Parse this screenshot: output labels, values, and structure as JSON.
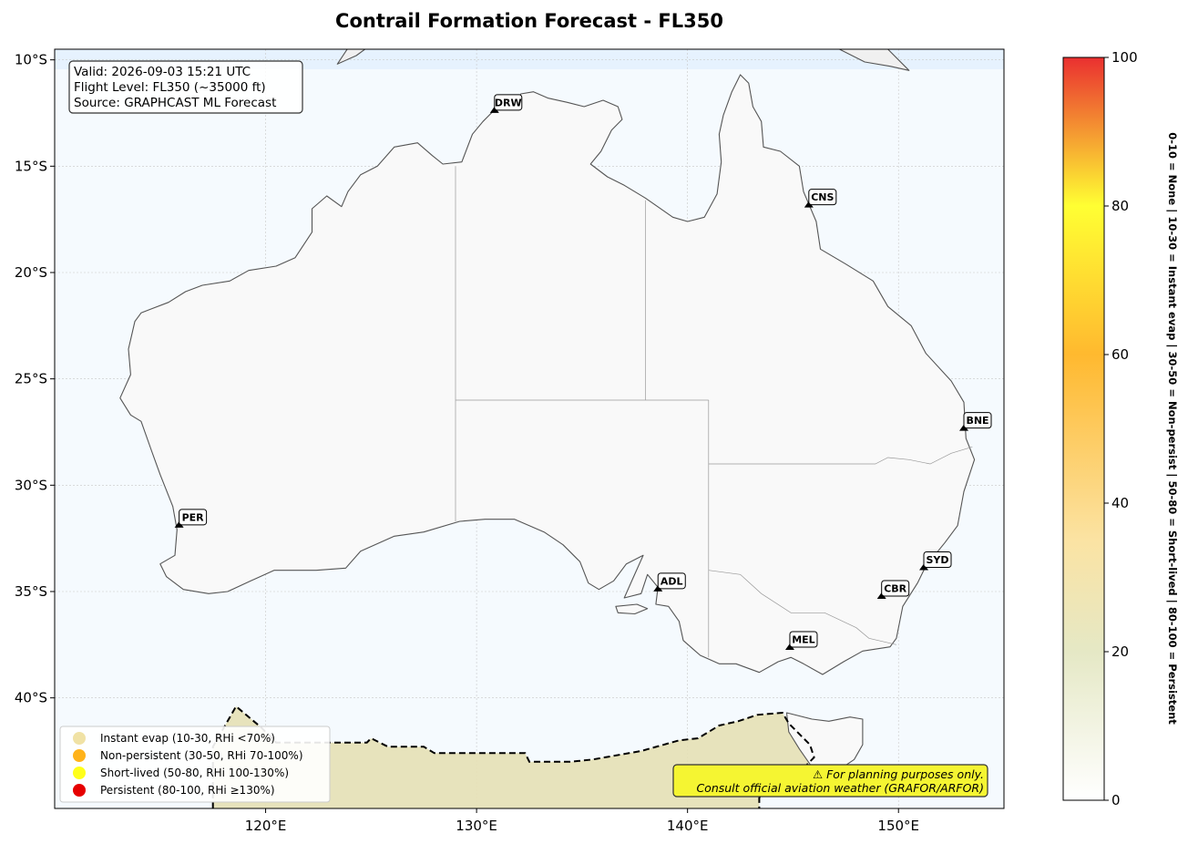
{
  "title": "Contrail Formation Forecast - FL350",
  "info_box": {
    "valid": "Valid: 2026-09-03 15:21 UTC",
    "flight_level": "Flight Level: FL350 (~35000 ft)",
    "source": "Source: GRAPHCAST ML Forecast"
  },
  "map": {
    "lon_range": [
      110,
      155
    ],
    "lat_range": [
      -45.2,
      -9.5
    ],
    "lon_ticks": [
      {
        "v": 120,
        "label": "120°E"
      },
      {
        "v": 130,
        "label": "130°E"
      },
      {
        "v": 140,
        "label": "140°E"
      },
      {
        "v": 150,
        "label": "150°E"
      }
    ],
    "lat_ticks": [
      {
        "v": -10,
        "label": "10°S"
      },
      {
        "v": -15,
        "label": "15°S"
      },
      {
        "v": -20,
        "label": "20°S"
      },
      {
        "v": -25,
        "label": "25°S"
      },
      {
        "v": -30,
        "label": "30°S"
      },
      {
        "v": -35,
        "label": "35°S"
      },
      {
        "v": -40,
        "label": "40°S"
      }
    ],
    "grid": true,
    "ocean_color": "#f5fafe",
    "land_color": "#f9f9f9"
  },
  "airports": [
    {
      "code": "DRW",
      "lon": 130.85,
      "lat": -12.45
    },
    {
      "code": "CNS",
      "lon": 145.75,
      "lat": -16.9
    },
    {
      "code": "BNE",
      "lon": 153.1,
      "lat": -27.4
    },
    {
      "code": "PER",
      "lon": 115.9,
      "lat": -31.95
    },
    {
      "code": "ADL",
      "lon": 138.6,
      "lat": -34.95
    },
    {
      "code": "SYD",
      "lon": 151.2,
      "lat": -33.95
    },
    {
      "code": "CBR",
      "lon": 149.2,
      "lat": -35.3
    },
    {
      "code": "MEL",
      "lon": 144.85,
      "lat": -37.7
    }
  ],
  "legend": {
    "position": "bottom-left",
    "items": [
      {
        "label": "Instant evap (10-30, RHi <70%)",
        "color": "#f0e2a5"
      },
      {
        "label": "Non-persistent (30-50, RHi 70-100%)",
        "color": "#ffb31a"
      },
      {
        "label": "Short-lived (50-80, RHi 100-130%)",
        "color": "#ffff1a"
      },
      {
        "label": "Persistent (80-100, RHi ≥130%)",
        "color": "#e60000"
      }
    ]
  },
  "note": {
    "line1": "⚠ For planning purposes only.",
    "line2": "Consult official aviation weather (GRAFOR/ARFOR)",
    "color": "#f5f532"
  },
  "colorbar": {
    "min": 0,
    "max": 100,
    "ticks": [
      {
        "v": 0,
        "label": "0"
      },
      {
        "v": 20,
        "label": "20"
      },
      {
        "v": 40,
        "label": "40"
      },
      {
        "v": 60,
        "label": "60"
      },
      {
        "v": 80,
        "label": "80"
      },
      {
        "v": 100,
        "label": "100"
      }
    ],
    "label": "0-10 = None  |  10-30 = Instant evap  |  30-50 = Non-persist  |  50-80 = Short-lived  |  80-100 = Persistent",
    "stops": [
      {
        "v": 0,
        "color": "#ffffff"
      },
      {
        "v": 20,
        "color": "#e5e8c5"
      },
      {
        "v": 35,
        "color": "#fbe3a3"
      },
      {
        "v": 60,
        "color": "#ffb92f"
      },
      {
        "v": 80,
        "color": "#ffff33"
      },
      {
        "v": 100,
        "color": "#ea3030"
      }
    ]
  },
  "contrail_region": {
    "level": 20,
    "fill_color": "#e6e0b5",
    "outline": [
      [
        117.5,
        -45.2
      ],
      [
        117.5,
        -42.3
      ],
      [
        118.6,
        -40.4
      ],
      [
        119.8,
        -41.4
      ],
      [
        120.5,
        -42.1
      ],
      [
        124.8,
        -42.1
      ],
      [
        125.0,
        -41.9
      ],
      [
        125.8,
        -42.3
      ],
      [
        127.5,
        -42.3
      ],
      [
        128.0,
        -42.6
      ],
      [
        132.3,
        -42.6
      ],
      [
        132.5,
        -43.0
      ],
      [
        134.5,
        -43.0
      ],
      [
        135.5,
        -42.9
      ],
      [
        137.8,
        -42.5
      ],
      [
        139.6,
        -42.0
      ],
      [
        140.5,
        -41.9
      ],
      [
        141.5,
        -41.3
      ],
      [
        142.4,
        -41.1
      ],
      [
        143.3,
        -40.8
      ],
      [
        144.5,
        -40.7
      ],
      [
        144.8,
        -41.2
      ],
      [
        145.8,
        -42.2
      ],
      [
        146.0,
        -42.8
      ],
      [
        145.0,
        -43.8
      ],
      [
        143.8,
        -44.2
      ],
      [
        143.4,
        -44.7
      ],
      [
        143.4,
        -45.2
      ]
    ]
  },
  "land": {
    "mainland": [
      [
        114.1,
        -21.9
      ],
      [
        114.6,
        -21.7
      ],
      [
        115.4,
        -21.4
      ],
      [
        116.2,
        -20.9
      ],
      [
        117.0,
        -20.6
      ],
      [
        118.3,
        -20.4
      ],
      [
        119.2,
        -19.9
      ],
      [
        120.5,
        -19.7
      ],
      [
        121.4,
        -19.3
      ],
      [
        122.2,
        -18.1
      ],
      [
        122.2,
        -17.0
      ],
      [
        122.9,
        -16.4
      ],
      [
        123.6,
        -16.9
      ],
      [
        123.9,
        -16.2
      ],
      [
        124.5,
        -15.4
      ],
      [
        125.3,
        -15.0
      ],
      [
        126.1,
        -14.1
      ],
      [
        127.2,
        -13.9
      ],
      [
        127.9,
        -14.5
      ],
      [
        128.4,
        -14.9
      ],
      [
        129.3,
        -14.8
      ],
      [
        129.8,
        -13.5
      ],
      [
        130.3,
        -12.9
      ],
      [
        130.9,
        -12.3
      ],
      [
        131.6,
        -12.2
      ],
      [
        132.1,
        -11.6
      ],
      [
        132.7,
        -11.5
      ],
      [
        133.4,
        -11.8
      ],
      [
        134.3,
        -12.0
      ],
      [
        135.1,
        -12.2
      ],
      [
        136.0,
        -11.9
      ],
      [
        136.7,
        -12.2
      ],
      [
        136.9,
        -12.8
      ],
      [
        136.4,
        -13.3
      ],
      [
        135.9,
        -14.3
      ],
      [
        135.4,
        -14.9
      ],
      [
        136.2,
        -15.5
      ],
      [
        137.0,
        -15.9
      ],
      [
        138.0,
        -16.5
      ],
      [
        139.3,
        -17.4
      ],
      [
        140.0,
        -17.6
      ],
      [
        140.8,
        -17.4
      ],
      [
        141.4,
        -16.3
      ],
      [
        141.6,
        -14.8
      ],
      [
        141.5,
        -13.5
      ],
      [
        141.7,
        -12.6
      ],
      [
        142.1,
        -11.5
      ],
      [
        142.5,
        -10.7
      ],
      [
        142.9,
        -11.1
      ],
      [
        143.1,
        -12.2
      ],
      [
        143.5,
        -12.9
      ],
      [
        143.6,
        -14.1
      ],
      [
        144.4,
        -14.3
      ],
      [
        145.3,
        -15.0
      ],
      [
        145.5,
        -16.2
      ],
      [
        146.1,
        -17.6
      ],
      [
        146.3,
        -18.9
      ],
      [
        147.5,
        -19.6
      ],
      [
        148.8,
        -20.4
      ],
      [
        149.5,
        -21.6
      ],
      [
        150.6,
        -22.5
      ],
      [
        151.3,
        -23.8
      ],
      [
        152.5,
        -25.1
      ],
      [
        153.1,
        -26.1
      ],
      [
        153.2,
        -27.8
      ],
      [
        153.6,
        -28.8
      ],
      [
        153.1,
        -30.3
      ],
      [
        152.8,
        -31.9
      ],
      [
        152.2,
        -32.7
      ],
      [
        151.3,
        -33.8
      ],
      [
        150.9,
        -34.6
      ],
      [
        150.2,
        -35.7
      ],
      [
        149.9,
        -37.2
      ],
      [
        149.6,
        -37.6
      ],
      [
        148.3,
        -37.8
      ],
      [
        147.4,
        -38.3
      ],
      [
        146.4,
        -38.9
      ],
      [
        145.5,
        -38.4
      ],
      [
        144.9,
        -38.1
      ],
      [
        144.3,
        -38.3
      ],
      [
        143.4,
        -38.8
      ],
      [
        142.3,
        -38.4
      ],
      [
        141.5,
        -38.4
      ],
      [
        140.6,
        -38.0
      ],
      [
        139.8,
        -37.3
      ],
      [
        139.6,
        -36.4
      ],
      [
        139.1,
        -35.7
      ],
      [
        138.5,
        -35.6
      ],
      [
        138.6,
        -34.8
      ],
      [
        138.1,
        -34.2
      ],
      [
        137.8,
        -35.1
      ],
      [
        137.0,
        -35.3
      ],
      [
        137.4,
        -34.4
      ],
      [
        137.9,
        -33.3
      ],
      [
        137.1,
        -33.7
      ],
      [
        136.5,
        -34.5
      ],
      [
        135.8,
        -34.9
      ],
      [
        135.3,
        -34.6
      ],
      [
        134.9,
        -33.6
      ],
      [
        134.1,
        -32.8
      ],
      [
        133.2,
        -32.2
      ],
      [
        131.8,
        -31.6
      ],
      [
        130.4,
        -31.6
      ],
      [
        129.2,
        -31.7
      ],
      [
        127.5,
        -32.2
      ],
      [
        126.1,
        -32.4
      ],
      [
        124.5,
        -33.1
      ],
      [
        123.8,
        -33.9
      ],
      [
        122.4,
        -34.0
      ],
      [
        120.4,
        -34.0
      ],
      [
        119.3,
        -34.5
      ],
      [
        118.2,
        -35.0
      ],
      [
        117.3,
        -35.1
      ],
      [
        116.1,
        -34.9
      ],
      [
        115.3,
        -34.3
      ],
      [
        115.0,
        -33.7
      ],
      [
        115.7,
        -33.3
      ],
      [
        115.8,
        -32.1
      ],
      [
        115.6,
        -31.0
      ],
      [
        115.0,
        -29.5
      ],
      [
        114.6,
        -28.4
      ],
      [
        114.1,
        -27.0
      ],
      [
        113.6,
        -26.7
      ],
      [
        113.1,
        -25.9
      ],
      [
        113.6,
        -24.8
      ],
      [
        113.5,
        -23.6
      ],
      [
        113.8,
        -22.3
      ],
      [
        114.1,
        -21.9
      ]
    ],
    "tasmania": [
      [
        144.7,
        -40.7
      ],
      [
        145.9,
        -41.0
      ],
      [
        146.7,
        -41.1
      ],
      [
        147.7,
        -40.9
      ],
      [
        148.3,
        -41.0
      ],
      [
        148.3,
        -42.2
      ],
      [
        147.9,
        -42.9
      ],
      [
        147.3,
        -43.3
      ],
      [
        146.8,
        -43.6
      ],
      [
        146.0,
        -43.4
      ],
      [
        145.3,
        -42.4
      ],
      [
        144.8,
        -41.6
      ],
      [
        144.7,
        -40.7
      ]
    ],
    "kangaroo_island": [
      [
        136.6,
        -35.7
      ],
      [
        137.6,
        -35.6
      ],
      [
        138.1,
        -35.8
      ],
      [
        137.5,
        -36.05
      ],
      [
        136.7,
        -36.0
      ],
      [
        136.6,
        -35.7
      ]
    ],
    "new_guinea": [
      [
        140.5,
        -9.5
      ],
      [
        141.8,
        -9.2
      ],
      [
        142.9,
        -9.2
      ],
      [
        143.6,
        -8.8
      ],
      [
        145.0,
        -8.7
      ],
      [
        146.3,
        -8.9
      ],
      [
        147.2,
        -9.5
      ],
      [
        148.4,
        -10.1
      ],
      [
        149.6,
        -10.3
      ],
      [
        150.5,
        -10.5
      ],
      [
        149.5,
        -9.5
      ],
      [
        148.5,
        -9.0
      ],
      [
        147.0,
        -8.4
      ],
      [
        146.0,
        -7.8
      ],
      [
        144.5,
        -7.3
      ],
      [
        142.9,
        -7.8
      ],
      [
        141.5,
        -7.8
      ],
      [
        140.5,
        -8.2
      ],
      [
        140.5,
        -9.5
      ]
    ],
    "timor": [
      [
        123.4,
        -10.2
      ],
      [
        124.3,
        -9.8
      ],
      [
        125.4,
        -9.0
      ],
      [
        126.6,
        -8.5
      ],
      [
        125.0,
        -8.6
      ],
      [
        124.0,
        -9.3
      ],
      [
        123.4,
        -10.2
      ]
    ]
  },
  "borders": [
    [
      [
        129.0,
        -15.0
      ],
      [
        129.0,
        -31.7
      ]
    ],
    [
      [
        129.0,
        -26.0
      ],
      [
        141.0,
        -26.0
      ]
    ],
    [
      [
        138.0,
        -16.6
      ],
      [
        138.0,
        -26.0
      ]
    ],
    [
      [
        141.0,
        -26.0
      ],
      [
        141.0,
        -38.1
      ]
    ],
    [
      [
        141.0,
        -29.0
      ],
      [
        148.9,
        -29.0
      ],
      [
        149.5,
        -28.7
      ],
      [
        150.5,
        -28.8
      ],
      [
        151.5,
        -29.0
      ],
      [
        152.5,
        -28.5
      ],
      [
        153.5,
        -28.2
      ]
    ],
    [
      [
        141.0,
        -34.0
      ],
      [
        142.5,
        -34.2
      ],
      [
        143.5,
        -35.1
      ],
      [
        144.9,
        -36.0
      ],
      [
        146.5,
        -36.0
      ],
      [
        148.0,
        -36.7
      ],
      [
        148.6,
        -37.2
      ],
      [
        149.9,
        -37.5
      ]
    ]
  ]
}
